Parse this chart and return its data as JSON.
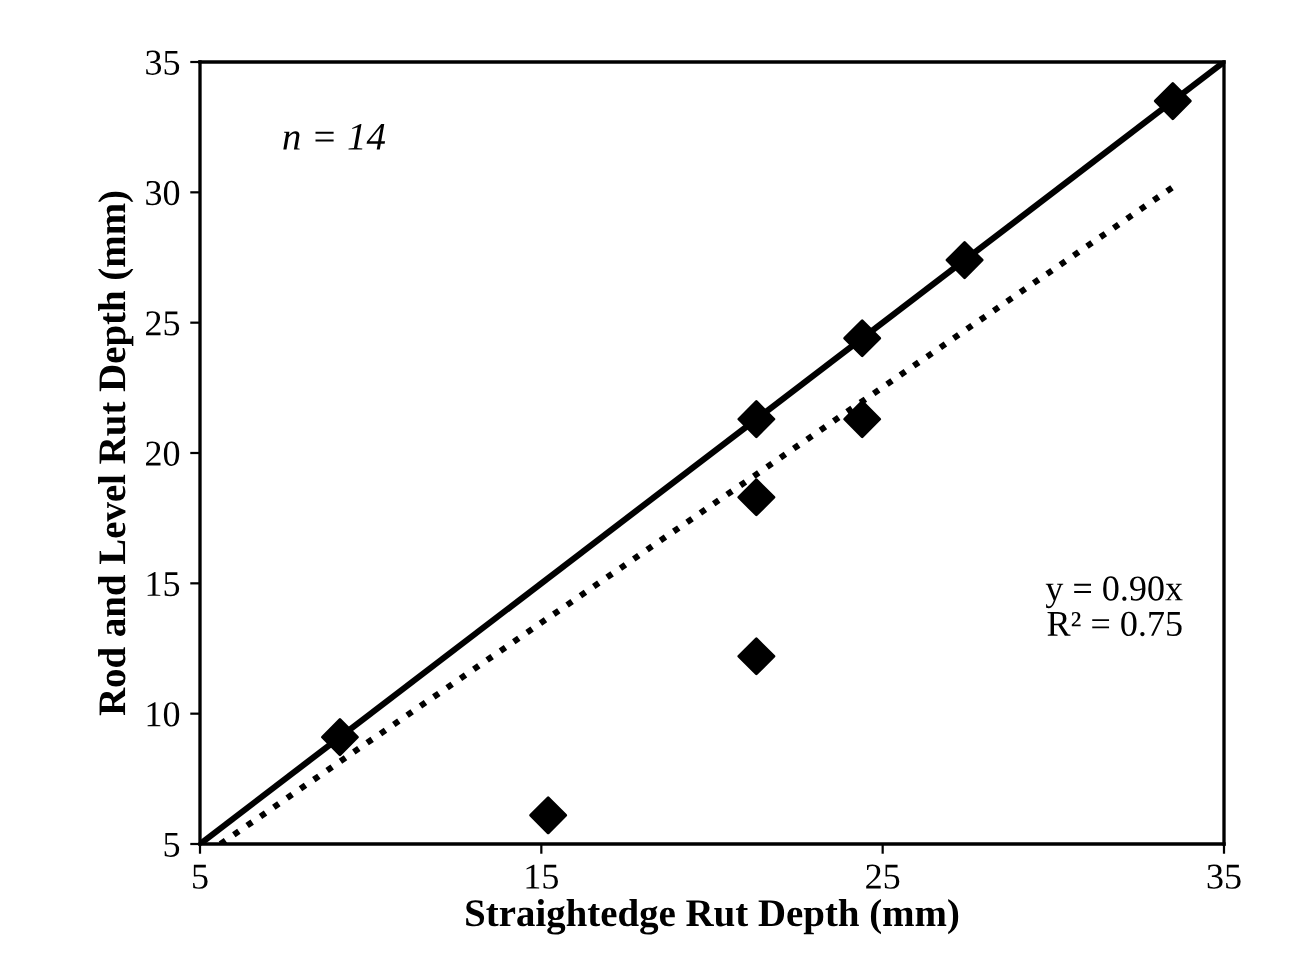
{
  "chart_data": {
    "type": "scatter",
    "xlabel": "Straightedge Rut Depth (mm)",
    "ylabel": "Rod and Level Rut Depth (mm)",
    "series": [
      {
        "color": "#000000",
        "marker": "diamond",
        "x": [
          9.1,
          15.2,
          21.3,
          21.3,
          21.3,
          24.4,
          24.4,
          27.4,
          33.5
        ],
        "values": [
          9.1,
          6.1,
          21.3,
          18.3,
          12.2,
          24.4,
          21.3,
          27.4,
          33.5
        ]
      },
      {
        "type": "line",
        "color": "#000000",
        "line_style": "solid",
        "marker": "none",
        "x": [
          5,
          35
        ],
        "values": [
          5,
          35
        ]
      },
      {
        "type": "line",
        "color": "#000000",
        "line_style": "dotted",
        "marker": "none",
        "x": [
          5.6,
          33.5
        ],
        "values": [
          5.0,
          30.2
        ]
      }
    ],
    "annotations": [
      "n = 14",
      "y = 0.90x\nR² = 0.75"
    ],
    "xlim": [
      5,
      35
    ],
    "xticks": [
      5,
      15,
      25,
      35
    ],
    "ylim": [
      5,
      35
    ],
    "yticks": [
      5,
      10,
      15,
      20,
      25,
      30,
      35
    ],
    "grid": false,
    "legend": false
  }
}
